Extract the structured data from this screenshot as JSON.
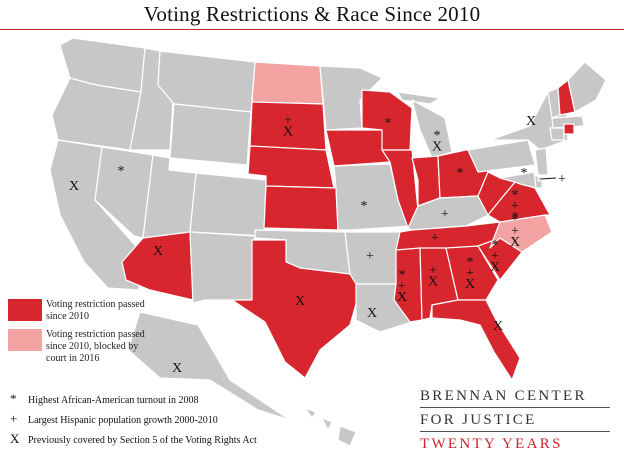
{
  "title": "Voting Restrictions & Race Since 2010",
  "colors": {
    "restriction": "#d8262e",
    "blocked": "#f4a3a3",
    "other": "#c7c7c7",
    "border": "#ffffff",
    "brand_red": "#c9252c"
  },
  "legend": {
    "restriction_label": "Voting restriction passed since 2010",
    "blocked_label": "Voting restriction passed since 2010, blocked by court in 2016"
  },
  "key": [
    {
      "symbol": "*",
      "label": "Highest African-American  turnout in 2008"
    },
    {
      "symbol": "+",
      "label": "Largest Hispanic population growth  2000-2010"
    },
    {
      "symbol": "X",
      "label": "Previously covered by Section 5 of the Voting Rights Act"
    }
  ],
  "brand": {
    "line1": "BRENNAN CENTER",
    "line2": "FOR JUSTICE",
    "line3": "TWENTY YEARS"
  },
  "states": [
    {
      "id": "WA",
      "status": "other",
      "marks": []
    },
    {
      "id": "OR",
      "status": "other",
      "marks": []
    },
    {
      "id": "CA",
      "status": "other",
      "marks": [
        "X"
      ]
    },
    {
      "id": "NV",
      "status": "other",
      "marks": [
        "*"
      ]
    },
    {
      "id": "ID",
      "status": "other",
      "marks": []
    },
    {
      "id": "MT",
      "status": "other",
      "marks": []
    },
    {
      "id": "WY",
      "status": "other",
      "marks": []
    },
    {
      "id": "UT",
      "status": "other",
      "marks": []
    },
    {
      "id": "AZ",
      "status": "restriction",
      "marks": [
        "X"
      ]
    },
    {
      "id": "CO",
      "status": "other",
      "marks": []
    },
    {
      "id": "NM",
      "status": "other",
      "marks": []
    },
    {
      "id": "ND",
      "status": "blocked",
      "marks": []
    },
    {
      "id": "SD",
      "status": "restriction",
      "marks": [
        "+",
        "X"
      ]
    },
    {
      "id": "NE",
      "status": "restriction",
      "marks": []
    },
    {
      "id": "KS",
      "status": "restriction",
      "marks": []
    },
    {
      "id": "OK",
      "status": "other",
      "marks": []
    },
    {
      "id": "TX",
      "status": "restriction",
      "marks": [
        "X"
      ]
    },
    {
      "id": "MN",
      "status": "other",
      "marks": []
    },
    {
      "id": "IA",
      "status": "restriction",
      "marks": []
    },
    {
      "id": "MO",
      "status": "other",
      "marks": [
        "*"
      ]
    },
    {
      "id": "AR",
      "status": "other",
      "marks": [
        "+"
      ]
    },
    {
      "id": "LA",
      "status": "other",
      "marks": [
        "X"
      ]
    },
    {
      "id": "WI",
      "status": "restriction",
      "marks": [
        "*"
      ]
    },
    {
      "id": "IL",
      "status": "restriction",
      "marks": []
    },
    {
      "id": "MI",
      "status": "other",
      "marks": [
        "*",
        "X"
      ]
    },
    {
      "id": "IN",
      "status": "restriction",
      "marks": []
    },
    {
      "id": "OH",
      "status": "restriction",
      "marks": [
        "*"
      ]
    },
    {
      "id": "KY",
      "status": "other",
      "marks": [
        "+"
      ]
    },
    {
      "id": "TN",
      "status": "restriction",
      "marks": [
        "+"
      ]
    },
    {
      "id": "MS",
      "status": "restriction",
      "marks": [
        "*",
        "+",
        "X"
      ]
    },
    {
      "id": "AL",
      "status": "restriction",
      "marks": [
        "+",
        "X"
      ]
    },
    {
      "id": "GA",
      "status": "restriction",
      "marks": [
        "*",
        "+",
        "X"
      ]
    },
    {
      "id": "FL",
      "status": "restriction",
      "marks": [
        "X"
      ]
    },
    {
      "id": "SC",
      "status": "restriction",
      "marks": [
        "*",
        "+",
        "X"
      ]
    },
    {
      "id": "NC",
      "status": "blocked",
      "marks": [
        "*",
        "+",
        "X"
      ]
    },
    {
      "id": "VA",
      "status": "restriction",
      "marks": [
        "*",
        "+",
        "*"
      ]
    },
    {
      "id": "WV",
      "status": "restriction",
      "marks": []
    },
    {
      "id": "PA",
      "status": "other",
      "marks": []
    },
    {
      "id": "NY",
      "status": "other",
      "marks": [
        "X"
      ]
    },
    {
      "id": "NJ",
      "status": "other",
      "marks": []
    },
    {
      "id": "DE",
      "status": "other",
      "marks": []
    },
    {
      "id": "MD",
      "status": "other",
      "marks": [
        "*"
      ]
    },
    {
      "id": "DC",
      "status": "other",
      "marks": [
        "+"
      ]
    },
    {
      "id": "VT",
      "status": "other",
      "marks": []
    },
    {
      "id": "NH",
      "status": "restriction",
      "marks": []
    },
    {
      "id": "ME",
      "status": "other",
      "marks": []
    },
    {
      "id": "MA",
      "status": "other",
      "marks": []
    },
    {
      "id": "CT",
      "status": "other",
      "marks": []
    },
    {
      "id": "RI",
      "status": "restriction",
      "marks": []
    },
    {
      "id": "AK",
      "status": "other",
      "marks": [
        "X"
      ]
    },
    {
      "id": "HI",
      "status": "other",
      "marks": []
    }
  ]
}
